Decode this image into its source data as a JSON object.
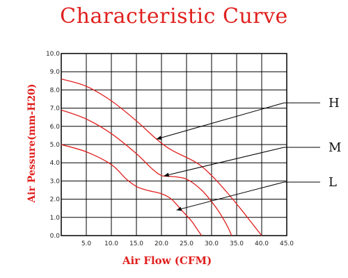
{
  "chart_data": {
    "type": "line",
    "title": "Characteristic Curve",
    "xlabel": "Air Flow (CFM)",
    "ylabel": "Air Pessure(mm-H20)",
    "xlim": [
      0,
      45
    ],
    "ylim": [
      0,
      10
    ],
    "grid": true,
    "x_ticks": [
      "5.0",
      "10.0",
      "15.0",
      "20.0",
      "25.0",
      "30.0",
      "35.0",
      "40.0",
      "45.0"
    ],
    "y_ticks": [
      "0.0",
      "1.0",
      "2.0",
      "3.0",
      "4.0",
      "5.0",
      "6.0",
      "7.0",
      "8.0",
      "9.0",
      "10.0"
    ],
    "series": [
      {
        "name": "H",
        "x": [
          0,
          5,
          10,
          15,
          19,
          22,
          27,
          30,
          33,
          36,
          38,
          40
        ],
        "y": [
          8.6,
          8.2,
          7.4,
          6.3,
          5.3,
          4.7,
          4.0,
          3.3,
          2.4,
          1.4,
          0.7,
          0.0
        ]
      },
      {
        "name": "M",
        "x": [
          0,
          5,
          10,
          15,
          18,
          20,
          22,
          25,
          28,
          31,
          33,
          34
        ],
        "y": [
          6.9,
          6.4,
          5.6,
          4.5,
          3.7,
          3.3,
          3.25,
          3.1,
          2.5,
          1.5,
          0.6,
          0.0
        ]
      },
      {
        "name": "L",
        "x": [
          0,
          5,
          10,
          13,
          15,
          17,
          20,
          22,
          24,
          26,
          27,
          28
        ],
        "y": [
          5.0,
          4.6,
          3.9,
          3.1,
          2.7,
          2.5,
          2.3,
          2.0,
          1.4,
          0.8,
          0.4,
          0.0
        ]
      }
    ],
    "colors": {
      "curve": "#e0201e",
      "grid": "#000000",
      "arrow": "#000000"
    },
    "callouts": [
      {
        "label": "H",
        "target_x": 19,
        "target_y": 5.3
      },
      {
        "label": "M",
        "target_x": 20.5,
        "target_y": 3.28
      },
      {
        "label": "L",
        "target_x": 23,
        "target_y": 1.4
      }
    ]
  }
}
